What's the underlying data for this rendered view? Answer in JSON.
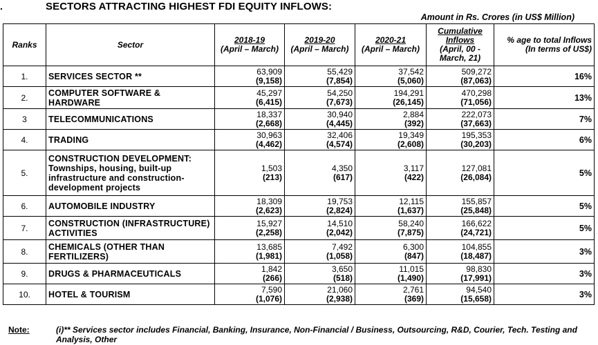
{
  "title": {
    "number": ".",
    "text": "SECTORS ATTRACTING HIGHEST FDI EQUITY INFLOWS:"
  },
  "unit_note": "Amount in Rs. Crores (in US$ Million)",
  "headers": {
    "rank": "Ranks",
    "sector": "Sector",
    "y1_label": "2018-19",
    "y1_sub": "(April – March)",
    "y2_label": "2019-20",
    "y2_sub": "(April – March)",
    "y3_label": "2020-21",
    "y3_sub": "(April – March)",
    "cum_label": "Cumulative Inflows",
    "cum_sub": "(April, 00 - March, 21)",
    "pct": "% age to total Inflows (In terms of US$)"
  },
  "rows": [
    {
      "rank": "1.",
      "sector": "SERVICES SECTOR **",
      "y1": "63,909",
      "y1_usd": "(9,158)",
      "y2": "55,429",
      "y2_usd": "(7,854)",
      "y3": "37,542",
      "y3_usd": "(5,060)",
      "cum": "509,272",
      "cum_usd": "(87,063)",
      "pct": "16%"
    },
    {
      "rank": "2.",
      "sector": "COMPUTER SOFTWARE & HARDWARE",
      "y1": "45,297",
      "y1_usd": "(6,415)",
      "y2": "54,250",
      "y2_usd": "(7,673)",
      "y3": "194,291",
      "y3_usd": "(26,145)",
      "cum": "470,298",
      "cum_usd": "(71,056)",
      "pct": "13%"
    },
    {
      "rank": "3",
      "sector": "TELECOMMUNICATIONS",
      "y1": "18,337",
      "y1_usd": "(2,668)",
      "y2": "30,940",
      "y2_usd": "(4,445)",
      "y3": "2,884",
      "y3_usd": "(392)",
      "cum": "222,073",
      "cum_usd": "(37,663)",
      "pct": "7%"
    },
    {
      "rank": "4.",
      "sector": "TRADING",
      "y1": "30,963",
      "y1_usd": "(4,462)",
      "y2": "32,406",
      "y2_usd": "(4,574)",
      "y3": "19,349",
      "y3_usd": "(2,608)",
      "cum": "195,353",
      "cum_usd": "(30,203)",
      "pct": "6%"
    },
    {
      "rank": "5.",
      "sector": "CONSTRUCTION DEVELOPMENT: Townships, housing, built-up infrastructure and construction-development projects",
      "y1": "1,503",
      "y1_usd": "(213)",
      "y2": "4,350",
      "y2_usd": "(617)",
      "y3": "3,117",
      "y3_usd": "(422)",
      "cum": "127,081",
      "cum_usd": "(26,084)",
      "pct": "5%"
    },
    {
      "rank": "6.",
      "sector": "AUTOMOBILE INDUSTRY",
      "y1": "18,309",
      "y1_usd": "(2,623)",
      "y2": "19,753",
      "y2_usd": "(2,824)",
      "y3": "12,115",
      "y3_usd": "(1,637)",
      "cum": "155,857",
      "cum_usd": "(25,848)",
      "pct": "5%"
    },
    {
      "rank": "7.",
      "sector": "CONSTRUCTION (INFRASTRUCTURE) ACTIVITIES",
      "y1": "15,927",
      "y1_usd": "(2,258)",
      "y2": "14,510",
      "y2_usd": "(2,042)",
      "y3": "58,240",
      "y3_usd": "(7,875)",
      "cum": "166,622",
      "cum_usd": "(24,721)",
      "pct": "5%"
    },
    {
      "rank": "8.",
      "sector": "CHEMICALS (OTHER THAN FERTILIZERS)",
      "y1": "13,685",
      "y1_usd": "(1,981)",
      "y2": "7,492",
      "y2_usd": "(1,058)",
      "y3": "6,300",
      "y3_usd": "(847)",
      "cum": "104,855",
      "cum_usd": "(18,487)",
      "pct": "3%"
    },
    {
      "rank": "9.",
      "sector": "DRUGS & PHARMACEUTICALS",
      "y1": "1,842",
      "y1_usd": "(266)",
      "y2": "3,650",
      "y2_usd": "(518)",
      "y3": "11,015",
      "y3_usd": "(1,490)",
      "cum": "98,830",
      "cum_usd": "(17,991)",
      "pct": "3%"
    },
    {
      "rank": "10.",
      "sector": "HOTEL & TOURISM",
      "y1": "7,590",
      "y1_usd": "(1,076)",
      "y2": "21,060",
      "y2_usd": "(2,938)",
      "y3": "2,761",
      "y3_usd": "(369)",
      "cum": "94,540",
      "cum_usd": "(15,658)",
      "pct": "3%"
    }
  ],
  "note": {
    "label": "Note:",
    "text": "(i)** Services sector includes Financial, Banking, Insurance, Non-Financial / Business, Outsourcing, R&D, Courier, Tech. Testing and Analysis, Other"
  }
}
